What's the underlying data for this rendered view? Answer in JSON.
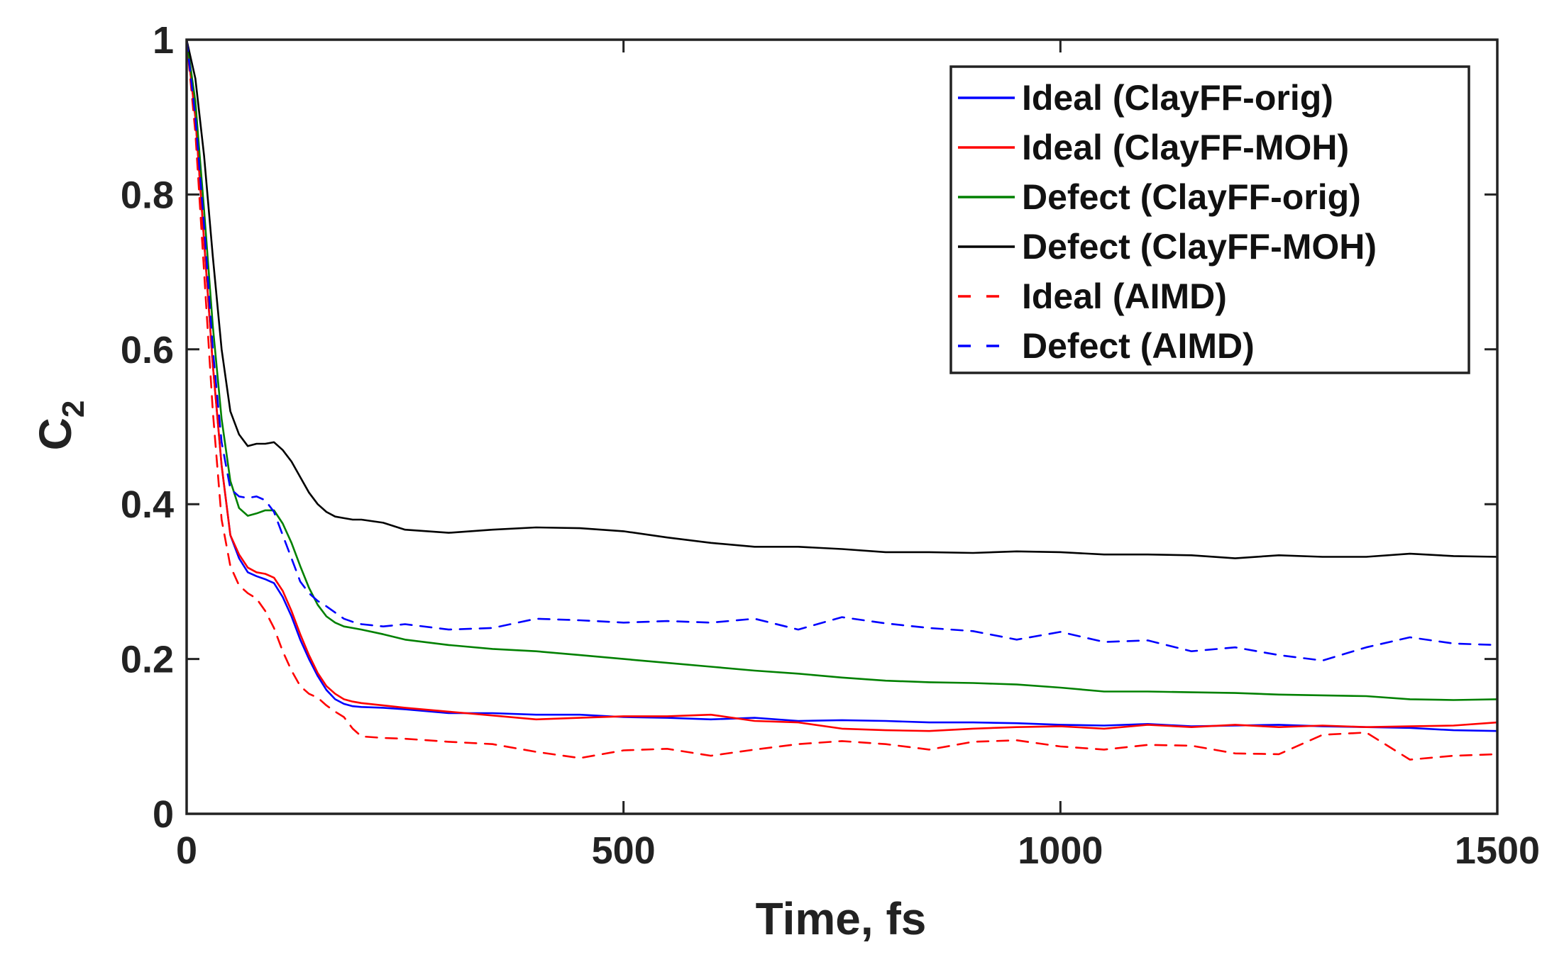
{
  "chart_data": {
    "type": "line",
    "title": "",
    "xlabel": "Time, fs",
    "ylabel": "C",
    "ylabel_subscript": "2",
    "xlim": [
      0,
      1500
    ],
    "ylim": [
      0,
      1
    ],
    "xticks": [
      0,
      500,
      1000,
      1500
    ],
    "xtick_labels": [
      "0",
      "500",
      "1000",
      "1500"
    ],
    "yticks": [
      0,
      0.2,
      0.4,
      0.6,
      0.8,
      1
    ],
    "ytick_labels": [
      "0",
      "0.2",
      "0.4",
      "0.6",
      "0.8",
      "1"
    ],
    "grid": false,
    "legend_position": "top-right",
    "series": [
      {
        "name": "Ideal (ClayFF-orig)",
        "color": "#0000ff",
        "dash": "solid",
        "x": [
          0,
          10,
          20,
          30,
          40,
          50,
          60,
          70,
          80,
          90,
          100,
          110,
          120,
          130,
          140,
          150,
          160,
          170,
          180,
          190,
          200,
          225,
          250,
          300,
          350,
          400,
          450,
          500,
          550,
          600,
          650,
          700,
          750,
          800,
          850,
          900,
          950,
          1000,
          1050,
          1100,
          1150,
          1200,
          1250,
          1300,
          1350,
          1400,
          1450,
          1500
        ],
        "values": [
          1.0,
          0.9,
          0.74,
          0.58,
          0.45,
          0.36,
          0.33,
          0.312,
          0.307,
          0.303,
          0.298,
          0.28,
          0.255,
          0.225,
          0.2,
          0.178,
          0.16,
          0.148,
          0.142,
          0.139,
          0.138,
          0.137,
          0.135,
          0.13,
          0.13,
          0.128,
          0.128,
          0.125,
          0.124,
          0.122,
          0.124,
          0.12,
          0.121,
          0.12,
          0.118,
          0.118,
          0.117,
          0.115,
          0.114,
          0.116,
          0.113,
          0.114,
          0.115,
          0.113,
          0.112,
          0.111,
          0.108,
          0.107
        ]
      },
      {
        "name": "Ideal (ClayFF-MOH)",
        "color": "#ff0000",
        "dash": "solid",
        "x": [
          0,
          10,
          20,
          30,
          40,
          50,
          60,
          70,
          80,
          90,
          100,
          110,
          120,
          130,
          140,
          150,
          160,
          170,
          180,
          190,
          200,
          225,
          250,
          300,
          350,
          400,
          450,
          500,
          550,
          600,
          650,
          700,
          750,
          800,
          850,
          900,
          950,
          1000,
          1050,
          1100,
          1150,
          1200,
          1250,
          1300,
          1350,
          1400,
          1450,
          1500
        ],
        "values": [
          1.0,
          0.9,
          0.74,
          0.58,
          0.45,
          0.36,
          0.335,
          0.318,
          0.312,
          0.31,
          0.305,
          0.288,
          0.262,
          0.232,
          0.205,
          0.182,
          0.165,
          0.155,
          0.148,
          0.145,
          0.143,
          0.14,
          0.137,
          0.132,
          0.127,
          0.122,
          0.124,
          0.126,
          0.126,
          0.128,
          0.12,
          0.118,
          0.11,
          0.108,
          0.107,
          0.11,
          0.112,
          0.113,
          0.11,
          0.115,
          0.112,
          0.115,
          0.112,
          0.114,
          0.112,
          0.113,
          0.114,
          0.118
        ]
      },
      {
        "name": "Defect (ClayFF-orig)",
        "color": "#008000",
        "dash": "solid",
        "x": [
          0,
          10,
          20,
          30,
          40,
          50,
          60,
          70,
          80,
          90,
          100,
          110,
          120,
          130,
          140,
          150,
          160,
          170,
          180,
          190,
          200,
          225,
          250,
          300,
          350,
          400,
          450,
          500,
          550,
          600,
          650,
          700,
          750,
          800,
          850,
          900,
          950,
          1000,
          1050,
          1100,
          1150,
          1200,
          1250,
          1300,
          1350,
          1400,
          1450,
          1500
        ],
        "values": [
          1.0,
          0.92,
          0.78,
          0.63,
          0.51,
          0.43,
          0.395,
          0.385,
          0.388,
          0.392,
          0.392,
          0.375,
          0.35,
          0.32,
          0.292,
          0.27,
          0.255,
          0.247,
          0.242,
          0.24,
          0.238,
          0.232,
          0.225,
          0.218,
          0.213,
          0.21,
          0.205,
          0.2,
          0.195,
          0.19,
          0.185,
          0.181,
          0.176,
          0.172,
          0.17,
          0.169,
          0.167,
          0.163,
          0.158,
          0.158,
          0.157,
          0.156,
          0.154,
          0.153,
          0.152,
          0.148,
          0.147,
          0.148
        ]
      },
      {
        "name": "Defect (ClayFF-MOH)",
        "color": "#000000",
        "dash": "solid",
        "x": [
          0,
          10,
          20,
          30,
          40,
          50,
          60,
          70,
          80,
          90,
          100,
          110,
          120,
          130,
          140,
          150,
          160,
          170,
          180,
          190,
          200,
          225,
          250,
          300,
          350,
          400,
          450,
          500,
          550,
          600,
          650,
          700,
          750,
          800,
          850,
          900,
          950,
          1000,
          1050,
          1100,
          1150,
          1200,
          1250,
          1300,
          1350,
          1400,
          1450,
          1500
        ],
        "values": [
          1.0,
          0.95,
          0.85,
          0.72,
          0.6,
          0.52,
          0.49,
          0.475,
          0.478,
          0.478,
          0.48,
          0.47,
          0.455,
          0.435,
          0.415,
          0.4,
          0.39,
          0.384,
          0.382,
          0.38,
          0.38,
          0.376,
          0.367,
          0.363,
          0.367,
          0.37,
          0.369,
          0.365,
          0.357,
          0.35,
          0.345,
          0.345,
          0.342,
          0.338,
          0.338,
          0.337,
          0.339,
          0.338,
          0.335,
          0.335,
          0.334,
          0.33,
          0.334,
          0.332,
          0.332,
          0.336,
          0.333,
          0.332
        ]
      },
      {
        "name": "Ideal (AIMD)",
        "color": "#ff0000",
        "dash": "dashed",
        "x": [
          0,
          10,
          20,
          30,
          40,
          50,
          60,
          70,
          80,
          90,
          100,
          110,
          120,
          130,
          140,
          150,
          160,
          170,
          180,
          190,
          200,
          225,
          250,
          300,
          350,
          400,
          450,
          500,
          550,
          600,
          650,
          700,
          750,
          800,
          850,
          900,
          950,
          1000,
          1050,
          1100,
          1150,
          1200,
          1250,
          1300,
          1350,
          1400,
          1450,
          1500
        ],
        "values": [
          1.0,
          0.88,
          0.7,
          0.52,
          0.38,
          0.32,
          0.295,
          0.285,
          0.278,
          0.262,
          0.24,
          0.21,
          0.185,
          0.165,
          0.155,
          0.15,
          0.14,
          0.132,
          0.125,
          0.11,
          0.1,
          0.098,
          0.097,
          0.093,
          0.09,
          0.08,
          0.072,
          0.082,
          0.084,
          0.075,
          0.083,
          0.09,
          0.094,
          0.09,
          0.083,
          0.093,
          0.095,
          0.087,
          0.083,
          0.089,
          0.088,
          0.078,
          0.077,
          0.102,
          0.105,
          0.07,
          0.075,
          0.077
        ]
      },
      {
        "name": "Defect (AIMD)",
        "color": "#0000ff",
        "dash": "dashed",
        "x": [
          0,
          10,
          20,
          30,
          40,
          50,
          60,
          70,
          80,
          90,
          100,
          110,
          120,
          130,
          140,
          150,
          160,
          170,
          180,
          190,
          200,
          225,
          250,
          300,
          350,
          400,
          450,
          500,
          550,
          600,
          650,
          700,
          750,
          800,
          850,
          900,
          950,
          1000,
          1050,
          1100,
          1150,
          1200,
          1250,
          1300,
          1350,
          1400,
          1450,
          1500
        ],
        "values": [
          1.0,
          0.9,
          0.76,
          0.6,
          0.48,
          0.42,
          0.41,
          0.408,
          0.41,
          0.405,
          0.39,
          0.36,
          0.33,
          0.3,
          0.285,
          0.275,
          0.268,
          0.26,
          0.252,
          0.248,
          0.245,
          0.242,
          0.245,
          0.238,
          0.24,
          0.252,
          0.25,
          0.247,
          0.249,
          0.247,
          0.252,
          0.238,
          0.254,
          0.246,
          0.24,
          0.236,
          0.225,
          0.235,
          0.222,
          0.224,
          0.21,
          0.215,
          0.205,
          0.198,
          0.215,
          0.228,
          0.22,
          0.218
        ]
      }
    ]
  }
}
